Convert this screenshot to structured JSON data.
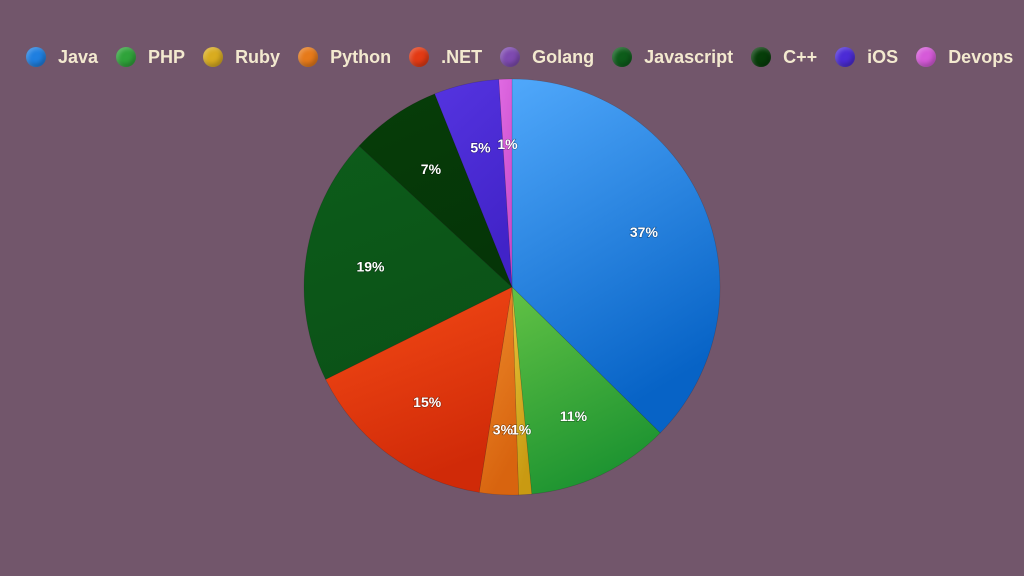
{
  "chart_data": {
    "type": "pie",
    "title": "",
    "legend_position": "top",
    "start_angle_deg": 0,
    "direction": "clockwise",
    "slices": [
      {
        "name": "Java",
        "value": 37,
        "label": "37%",
        "color": "#1f7fe0",
        "color_light": "#50a8fb",
        "color_dark": "#0763c6"
      },
      {
        "name": "PHP",
        "value": 11,
        "label": "11%",
        "color": "#2fa33a",
        "color_light": "#62c245",
        "color_dark": "#1e9431"
      },
      {
        "name": "Ruby",
        "value": 1,
        "label": "1%",
        "color": "#d9ac1f",
        "color_light": "#e7c43b",
        "color_dark": "#c99a12"
      },
      {
        "name": "Python",
        "value": 3,
        "label": "3%",
        "color": "#e67a1a",
        "color_light": "#ee8c2c",
        "color_dark": "#d8640f"
      },
      {
        "name": ".NET",
        "value": 15,
        "label": "15%",
        "color": "#e33a14",
        "color_light": "#f54b16",
        "color_dark": "#d02a08"
      },
      {
        "name": "Golang",
        "value": 0,
        "label": "",
        "color": "#7e4ab0",
        "color_light": "#9060c0",
        "color_dark": "#6c3a9e"
      },
      {
        "name": "Javascript",
        "value": 19,
        "label": "19%",
        "color": "#0d5c1a",
        "color_light": "#0d5c1a",
        "color_dark": "#0b5217"
      },
      {
        "name": "C++",
        "value": 7,
        "label": "7%",
        "color": "#063d09",
        "color_light": "#063d09",
        "color_dark": "#053507"
      },
      {
        "name": "iOS",
        "value": 5,
        "label": "5%",
        "color": "#4b2bd6",
        "color_light": "#5534e0",
        "color_dark": "#4123c8"
      },
      {
        "name": "Devops",
        "value": 1,
        "label": "1%",
        "color": "#d65ad9",
        "color_light": "#e06ae2",
        "color_dark": "#c84ccc"
      }
    ]
  }
}
